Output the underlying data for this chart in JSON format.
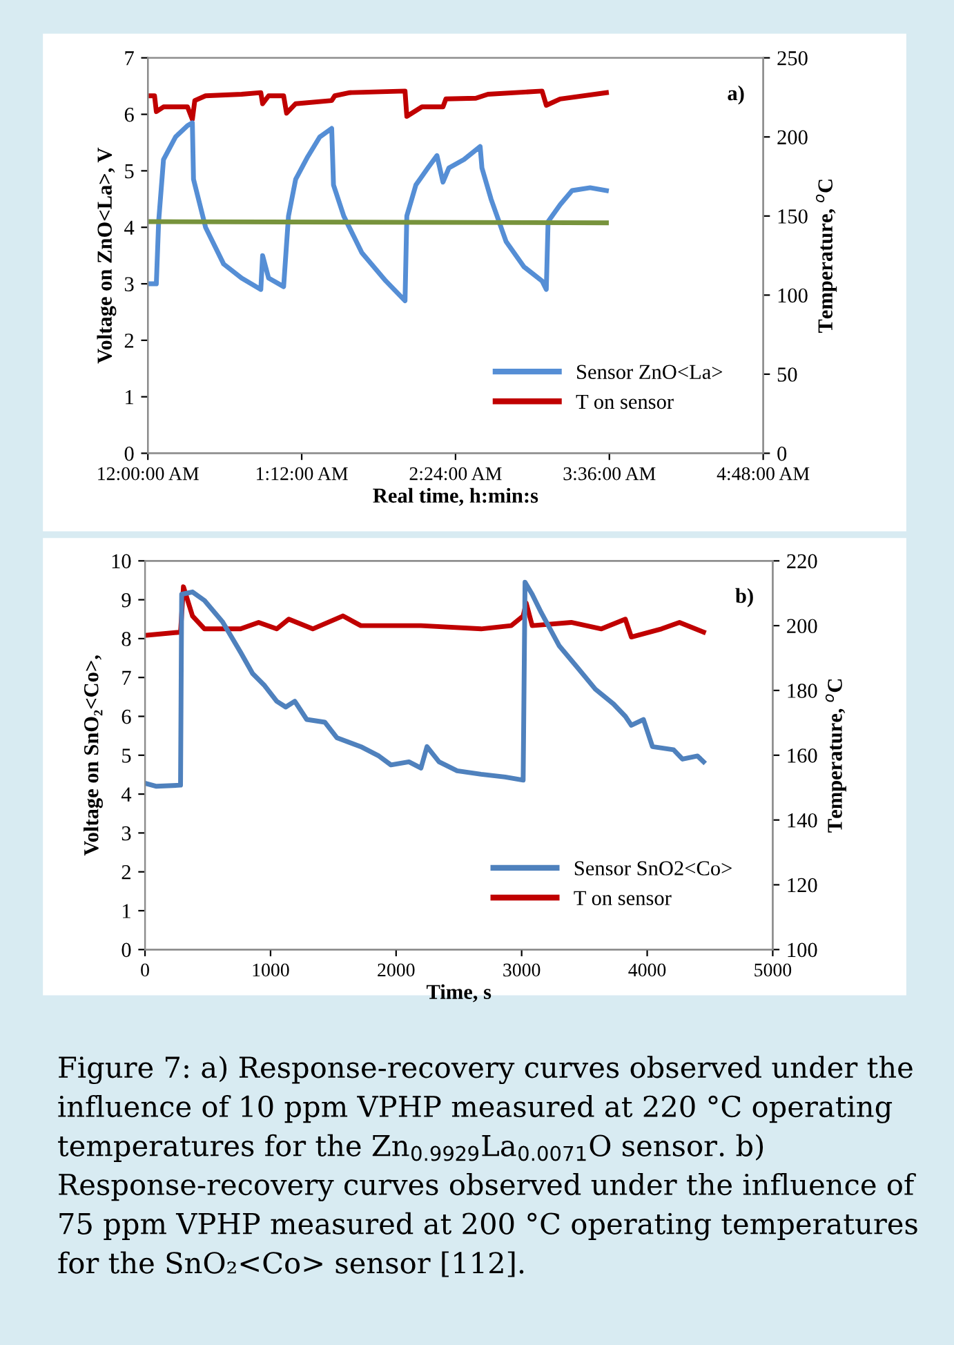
{
  "chart_data": [
    {
      "type": "line",
      "xlabel": "Real time, h:min:s",
      "ylabel": "Voltage on ZnO<La>, V",
      "y2label": "Temperature, $^{o}$C",
      "xlim": [
        0,
        4.8
      ],
      "xticks": [
        {
          "value": 0,
          "label": "12:00:00 AM"
        },
        {
          "value": 1.2,
          "label": "1:12:00 AM"
        },
        {
          "value": 2.4,
          "label": "2:24:00 AM"
        },
        {
          "value": 3.6,
          "label": "3:36:00 AM"
        },
        {
          "value": 4.8,
          "label": "4:48:00 AM"
        }
      ],
      "ylim": [
        0,
        7
      ],
      "yticks": [
        0,
        1,
        2,
        3,
        4,
        5,
        6,
        7
      ],
      "y2lim": [
        0,
        250
      ],
      "y2ticks": [
        0,
        50,
        100,
        150,
        200,
        250
      ],
      "legend": "bottom right",
      "annotations": [
        "a)"
      ],
      "series": [
        {
          "name": "Sensor ZnO<La>",
          "color": "#558ed5",
          "x": [
            0,
            0.066,
            0.084,
            0.122,
            0.216,
            0.309,
            0.347,
            0.356,
            0.45,
            0.591,
            0.731,
            0.881,
            0.895,
            0.942,
            1.059,
            1.097,
            1.153,
            1.247,
            1.341,
            1.434,
            1.448,
            1.528,
            1.669,
            1.856,
            2.006,
            2.02,
            2.091,
            2.184,
            2.255,
            2.302,
            2.348,
            2.466,
            2.592,
            2.606,
            2.677,
            2.794,
            2.934,
            3.075,
            3.108,
            3.122,
            3.216,
            3.309,
            3.45,
            3.577
          ],
          "values": [
            3.0,
            3.0,
            4.1,
            5.2,
            5.6,
            5.8,
            5.85,
            4.85,
            4.0,
            3.35,
            3.1,
            2.9,
            3.5,
            3.1,
            2.95,
            4.2,
            4.85,
            5.25,
            5.6,
            5.75,
            4.75,
            4.2,
            3.55,
            3.05,
            2.7,
            4.2,
            4.75,
            5.05,
            5.27,
            4.8,
            5.05,
            5.2,
            5.43,
            5.05,
            4.5,
            3.75,
            3.3,
            3.05,
            2.9,
            4.1,
            4.4,
            4.65,
            4.7,
            4.65
          ]
        },
        {
          "color": "#77933c",
          "x": [
            0,
            3.577
          ],
          "values": [
            4.1,
            4.08
          ]
        },
        {
          "name": "T on sensor",
          "color": "#c00000",
          "axis": "y2",
          "x": [
            0,
            0.052,
            0.066,
            0.122,
            0.309,
            0.347,
            0.366,
            0.45,
            0.731,
            0.881,
            0.895,
            0.942,
            1.059,
            1.082,
            1.153,
            1.434,
            1.458,
            1.575,
            2.006,
            2.02,
            2.138,
            2.302,
            2.325,
            2.559,
            2.653,
            3.075,
            3.108,
            3.216,
            3.577
          ],
          "values": [
            226,
            226,
            216,
            219,
            219,
            211,
            223,
            226,
            227,
            228,
            221,
            226,
            226,
            215,
            221,
            223,
            226,
            228,
            229,
            213,
            219,
            219,
            224,
            224.5,
            227,
            229,
            220,
            224,
            228
          ]
        }
      ]
    },
    {
      "type": "line",
      "xlabel": "Time, s",
      "ylabel": "Voltage on SnO₂<Co>,",
      "y2label": "Temperature, $^{o}$C",
      "xlim": [
        0,
        5000
      ],
      "xticks": [
        0,
        1000,
        2000,
        3000,
        4000,
        5000
      ],
      "ylim": [
        0,
        10
      ],
      "yticks": [
        0,
        1,
        2,
        3,
        4,
        5,
        6,
        7,
        8,
        9,
        10
      ],
      "y2lim": [
        100,
        220
      ],
      "y2ticks": [
        100,
        120,
        140,
        160,
        180,
        200,
        220
      ],
      "legend": "bottom right",
      "annotations": [
        "b)",
        "Figure 7: a) Response-recovery curves observed under the influence of 10 ppm VPHP measured at 220 °C operating temperatures for the Zn$_{0.9929}$La$_{0.0071}$O sensor. b) Response-recovery curves observed under the influence of 75 ppm VPHP measured at 200 °C operating temperatures for the SnO₂<Co> sensor [112]."
      ],
      "series": [
        {
          "name": "Sensor SnO2<Co>",
          "color": "#4f81bd",
          "x": [
            0,
            91,
            283,
            292,
            378,
            474,
            618,
            761,
            857,
            953,
            1049,
            1121,
            1193,
            1288,
            1432,
            1528,
            1719,
            1863,
            1959,
            2102,
            2198,
            2246,
            2342,
            2486,
            2677,
            2869,
            3012,
            3027,
            3084,
            3156,
            3300,
            3443,
            3587,
            3731,
            3826,
            3874,
            3970,
            4042,
            4210,
            4281,
            4401,
            4449
          ],
          "values": [
            4.28,
            4.2,
            4.23,
            9.14,
            9.2,
            8.98,
            8.43,
            7.65,
            7.1,
            6.79,
            6.39,
            6.24,
            6.39,
            5.92,
            5.85,
            5.45,
            5.22,
            4.98,
            4.75,
            4.83,
            4.67,
            5.22,
            4.83,
            4.6,
            4.51,
            4.44,
            4.36,
            9.45,
            9.14,
            8.67,
            7.81,
            7.26,
            6.7,
            6.32,
            6.0,
            5.77,
            5.92,
            5.22,
            5.14,
            4.9,
            4.98,
            4.83
          ]
        },
        {
          "name": "T on sensor",
          "color": "#c00000",
          "axis": "y2",
          "x": [
            0,
            283,
            306,
            378,
            474,
            761,
            905,
            1049,
            1145,
            1336,
            1576,
            1719,
            2198,
            2677,
            2917,
            3012,
            3036,
            3084,
            3395,
            3635,
            3826,
            3874,
            4114,
            4257,
            4449
          ],
          "values": [
            197,
            198,
            212,
            203,
            199,
            199,
            201,
            199,
            202,
            199,
            203,
            200,
            200,
            199,
            200,
            203,
            207,
            200,
            201,
            199,
            202,
            196.5,
            199,
            201,
            198
          ]
        }
      ]
    }
  ]
}
